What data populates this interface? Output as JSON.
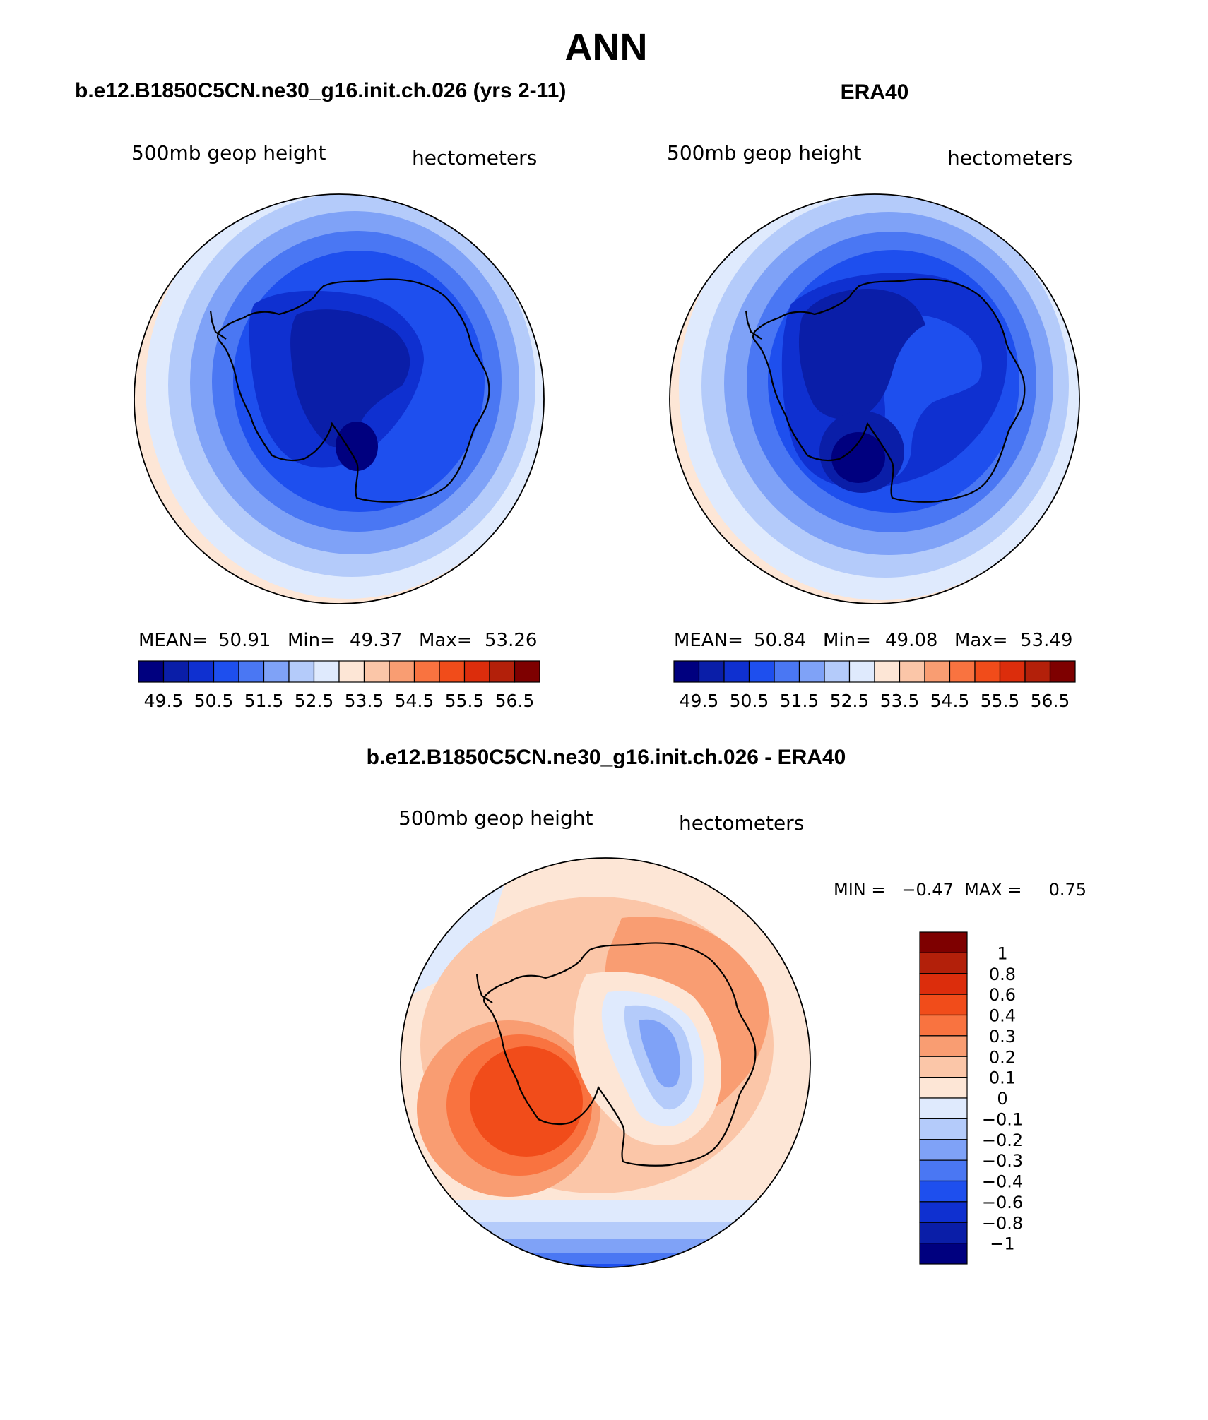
{
  "figure": {
    "title": "ANN",
    "panel_left_title": "b.e12.B1850C5CN.ne30_g16.init.ch.026 (yrs 2-11)",
    "panel_right_title": "ERA40",
    "panel_diff_title": "b.e12.B1850C5CN.ne30_g16.init.ch.026 - ERA40"
  },
  "panels": {
    "left": {
      "variable": "500mb  geop  height",
      "units": "hectometers",
      "mean_label": "MEAN=",
      "mean": "50.91",
      "min_label": "Min=",
      "min": "49.37",
      "max_label": "Max=",
      "max": "53.26"
    },
    "right": {
      "variable": "500mb  geop  height",
      "units": "hectometers",
      "mean_label": "MEAN=",
      "mean": "50.84",
      "min_label": "Min=",
      "min": "49.08",
      "max_label": "Max=",
      "max": "53.49"
    },
    "diff": {
      "variable": "500mb  geop  height",
      "units": "hectometers",
      "minmax_text": "MIN =   −0.47  MAX =     0.75"
    }
  },
  "chart_data": [
    {
      "type": "heatmap",
      "projection": "south-polar-stereographic",
      "title": "b.e12.B1850C5CN.ne30_g16.init.ch.026 (yrs 2-11)",
      "field": "500mb geop height",
      "units": "hectometers",
      "mean": 50.91,
      "min": 49.37,
      "max": 53.26,
      "contour_levels": [
        49.5,
        50,
        50.5,
        51,
        51.5,
        52,
        52.5,
        53,
        53.5,
        54,
        54.5,
        55,
        55.5,
        56,
        56.5
      ],
      "colorbar_labels": [
        "49.5",
        "50.5",
        "51.5",
        "52.5",
        "53.5",
        "54.5",
        "55.5",
        "56.5"
      ],
      "colors": [
        "#00007f",
        "#0a1ea8",
        "#0f30d0",
        "#1e4fee",
        "#4a77f3",
        "#7fa2f7",
        "#b4cbfa",
        "#dfeafd",
        "#fde6d6",
        "#fbc6a8",
        "#f99d72",
        "#f97340",
        "#f14c1a",
        "#dc2d0c",
        "#b3200a",
        "#7e0000"
      ]
    },
    {
      "type": "heatmap",
      "projection": "south-polar-stereographic",
      "title": "ERA40",
      "field": "500mb geop height",
      "units": "hectometers",
      "mean": 50.84,
      "min": 49.08,
      "max": 53.49,
      "contour_levels": [
        49.5,
        50,
        50.5,
        51,
        51.5,
        52,
        52.5,
        53,
        53.5,
        54,
        54.5,
        55,
        55.5,
        56,
        56.5
      ],
      "colorbar_labels": [
        "49.5",
        "50.5",
        "51.5",
        "52.5",
        "53.5",
        "54.5",
        "55.5",
        "56.5"
      ],
      "colors": [
        "#00007f",
        "#0a1ea8",
        "#0f30d0",
        "#1e4fee",
        "#4a77f3",
        "#7fa2f7",
        "#b4cbfa",
        "#dfeafd",
        "#fde6d6",
        "#fbc6a8",
        "#f99d72",
        "#f97340",
        "#f14c1a",
        "#dc2d0c",
        "#b3200a",
        "#7e0000"
      ]
    },
    {
      "type": "heatmap",
      "projection": "south-polar-stereographic",
      "title": "b.e12.B1850C5CN.ne30_g16.init.ch.026 - ERA40",
      "field": "500mb geop height",
      "units": "hectometers",
      "min": -0.47,
      "max": 0.75,
      "colorbar_labels": [
        "1",
        "0.8",
        "0.6",
        "0.4",
        "0.3",
        "0.2",
        "0.1",
        "0",
        "−0.1",
        "−0.2",
        "−0.3",
        "−0.4",
        "−0.6",
        "−0.8",
        "−1"
      ],
      "colors": [
        "#7e0000",
        "#b3200a",
        "#dc2d0c",
        "#f14c1a",
        "#f97340",
        "#f99d72",
        "#fbc6a8",
        "#fde6d6",
        "#dfeafd",
        "#b4cbfa",
        "#7fa2f7",
        "#4a77f3",
        "#1e4fee",
        "#0f30d0",
        "#0a1ea8",
        "#00007f"
      ]
    }
  ]
}
